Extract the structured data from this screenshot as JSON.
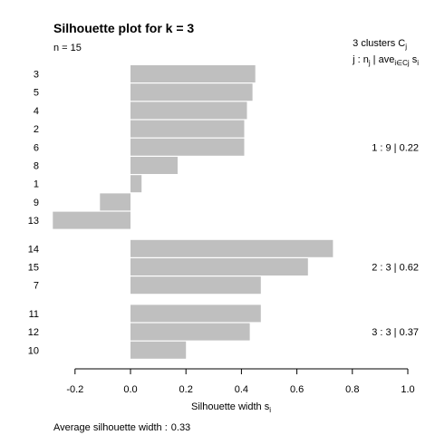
{
  "chart_data": {
    "type": "bar",
    "orientation": "horizontal",
    "title": "Silhouette plot for k = 3",
    "n_label": "n = 15",
    "legend_header": {
      "line1_prefix": "3  clusters  C",
      "line1_sub": "j",
      "line2_j": "j :  n",
      "line2_j_sub": "j",
      "line2_ave": " | ave",
      "line2_ave_sub": "i∈Cj",
      "line2_s": "  s",
      "line2_s_sub": "i"
    },
    "xlabel": "Silhouette width s",
    "xlabel_sub": "i",
    "xlim": [
      -0.27,
      1.0
    ],
    "xticks": [
      -0.2,
      0.0,
      0.2,
      0.4,
      0.6,
      0.8,
      1.0
    ],
    "xtick_labels": [
      "-0.2",
      "0.0",
      "0.2",
      "0.4",
      "0.6",
      "0.8",
      "1.0"
    ],
    "footer_label": "Average silhouette width :",
    "footer_value": "0.33",
    "bar_color": "#bfbfbf",
    "clusters": [
      {
        "summary": "1 :  9  |  0.22",
        "observations": [
          {
            "label": "3",
            "value": 0.45
          },
          {
            "label": "5",
            "value": 0.44
          },
          {
            "label": "4",
            "value": 0.42
          },
          {
            "label": "2",
            "value": 0.41
          },
          {
            "label": "6",
            "value": 0.41
          },
          {
            "label": "8",
            "value": 0.17
          },
          {
            "label": "1",
            "value": 0.04
          },
          {
            "label": "9",
            "value": -0.11
          },
          {
            "label": "13",
            "value": -0.28
          }
        ]
      },
      {
        "summary": "2 :  3  |  0.62",
        "observations": [
          {
            "label": "14",
            "value": 0.73
          },
          {
            "label": "15",
            "value": 0.64
          },
          {
            "label": "7",
            "value": 0.47
          }
        ]
      },
      {
        "summary": "3 :  3  |  0.37",
        "observations": [
          {
            "label": "11",
            "value": 0.47
          },
          {
            "label": "12",
            "value": 0.43
          },
          {
            "label": "10",
            "value": 0.2
          }
        ]
      }
    ]
  }
}
